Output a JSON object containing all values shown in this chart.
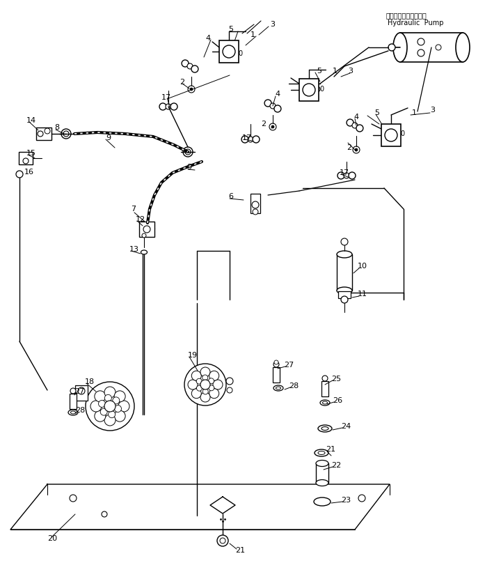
{
  "bg_color": "#ffffff",
  "line_color": "#000000",
  "hydraulic_pump_label_jp": "ハイドロリックポンプ",
  "hydraulic_pump_label_en": "Hydraulic  Pump",
  "figsize": [
    6.97,
    8.31
  ],
  "dpi": 100
}
